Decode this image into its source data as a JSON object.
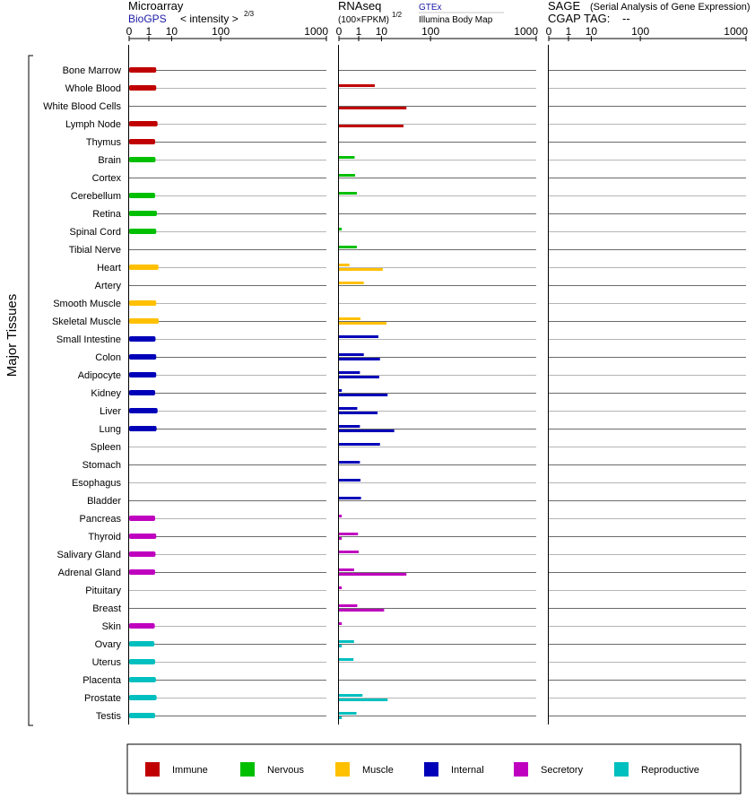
{
  "headers": {
    "microarray": "Microarray",
    "biogps": "BioGPS",
    "intensity": "< intensity >",
    "intensity_exp": "2/3",
    "rnaseq": "RNAseq",
    "fpkm": "(100×FPKM)",
    "fpkm_exp": "1/2",
    "gtex": "GTEx",
    "illumina": "Illumina Body Map",
    "sage": "SAGE",
    "sage_desc": "(Serial Analysis of Gene Expression)",
    "cgap": "CGAP TAG:",
    "cgap_value": "--"
  },
  "side_label": "Major Tissues",
  "ticks": [
    "0",
    "1",
    "10",
    "100",
    "1000"
  ],
  "colors": {
    "immune": "#c00000",
    "nervous": "#00bf00",
    "muscle": "#ffc000",
    "internal": "#0000b8",
    "secretory": "#bf00bf",
    "reproductive": "#00bfbf"
  },
  "legend": [
    {
      "key": "immune",
      "label": "Immune"
    },
    {
      "key": "nervous",
      "label": "Nervous"
    },
    {
      "key": "muscle",
      "label": "Muscle"
    },
    {
      "key": "internal",
      "label": "Internal"
    },
    {
      "key": "secretory",
      "label": "Secretory"
    },
    {
      "key": "reproductive",
      "label": "Reproductive"
    }
  ],
  "chart_data": {
    "type": "bar",
    "title": "",
    "x_scale": "power 1/3 (ticks 0, 1, 10, 100, 1000)",
    "xlim": [
      0,
      1000
    ],
    "grid": true,
    "legend_position": "bottom",
    "tissues": [
      {
        "name": "Bone Marrow",
        "group": "immune",
        "microarray": 2.6,
        "gtex": null,
        "illumina": null
      },
      {
        "name": "Whole Blood",
        "group": "immune",
        "microarray": 2.6,
        "gtex": 6.0,
        "illumina": null
      },
      {
        "name": "White Blood Cells",
        "group": "immune",
        "microarray": null,
        "gtex": null,
        "illumina": 40
      },
      {
        "name": "Lymph Node",
        "group": "immune",
        "microarray": 3.0,
        "gtex": null,
        "illumina": 35
      },
      {
        "name": "Thymus",
        "group": "immune",
        "microarray": 2.3,
        "gtex": null,
        "illumina": null
      },
      {
        "name": "Brain",
        "group": "nervous",
        "microarray": 2.4,
        "gtex": 0.5,
        "illumina": null
      },
      {
        "name": "Cortex",
        "group": "nervous",
        "microarray": null,
        "gtex": 0.55,
        "illumina": null
      },
      {
        "name": "Cerebellum",
        "group": "nervous",
        "microarray": 2.3,
        "gtex": 0.75,
        "illumina": null
      },
      {
        "name": "Retina",
        "group": "nervous",
        "microarray": 2.8,
        "gtex": null,
        "illumina": null
      },
      {
        "name": "Spinal Cord",
        "group": "nervous",
        "microarray": 2.6,
        "gtex": 0.003,
        "illumina": null
      },
      {
        "name": "Tibial Nerve",
        "group": "nervous",
        "microarray": null,
        "gtex": 0.75,
        "illumina": null
      },
      {
        "name": "Heart",
        "group": "muscle",
        "microarray": 3.3,
        "gtex": 0.15,
        "illumina": 11
      },
      {
        "name": "Artery",
        "group": "muscle",
        "microarray": null,
        "gtex": 2.0,
        "illumina": null
      },
      {
        "name": "Smooth Muscle",
        "group": "muscle",
        "microarray": 2.6,
        "gtex": null,
        "illumina": null
      },
      {
        "name": "Skeletal Muscle",
        "group": "muscle",
        "microarray": 3.4,
        "gtex": 1.3,
        "illumina": 14
      },
      {
        "name": "Small Intestine",
        "group": "internal",
        "microarray": 2.4,
        "gtex": 8.0,
        "illumina": null
      },
      {
        "name": "Colon",
        "group": "internal",
        "microarray": 2.6,
        "gtex": 2.0,
        "illumina": 9.0
      },
      {
        "name": "Adipocyte",
        "group": "internal",
        "microarray": 2.6,
        "gtex": 1.2,
        "illumina": 8.5
      },
      {
        "name": "Kidney",
        "group": "internal",
        "microarray": 2.3,
        "gtex": 0.003,
        "illumina": 15
      },
      {
        "name": "Liver",
        "group": "internal",
        "microarray": 3.0,
        "gtex": 0.8,
        "illumina": 7.5
      },
      {
        "name": "Lung",
        "group": "internal",
        "microarray": 2.7,
        "gtex": 1.2,
        "illumina": 22
      },
      {
        "name": "Spleen",
        "group": "internal",
        "microarray": null,
        "gtex": 9.0,
        "illumina": null
      },
      {
        "name": "Stomach",
        "group": "internal",
        "microarray": null,
        "gtex": 1.2,
        "illumina": null
      },
      {
        "name": "Esophagus",
        "group": "internal",
        "microarray": null,
        "gtex": 1.3,
        "illumina": null
      },
      {
        "name": "Bladder",
        "group": "internal",
        "microarray": null,
        "gtex": 1.4,
        "illumina": null
      },
      {
        "name": "Pancreas",
        "group": "secretory",
        "microarray": 2.3,
        "gtex": 0.003,
        "illumina": null
      },
      {
        "name": "Thyroid",
        "group": "secretory",
        "microarray": 2.6,
        "gtex": 0.9,
        "illumina": 0.003
      },
      {
        "name": "Salivary Gland",
        "group": "secretory",
        "microarray": 2.4,
        "gtex": 1.0,
        "illumina": null
      },
      {
        "name": "Adrenal Gland",
        "group": "secretory",
        "microarray": 2.3,
        "gtex": 0.45,
        "illumina": 40
      },
      {
        "name": "Pituitary",
        "group": "secretory",
        "microarray": null,
        "gtex": 0.003,
        "illumina": null
      },
      {
        "name": "Breast",
        "group": "secretory",
        "microarray": null,
        "gtex": 0.8,
        "illumina": 12
      },
      {
        "name": "Skin",
        "group": "secretory",
        "microarray": 2.2,
        "gtex": 0.003,
        "illumina": null
      },
      {
        "name": "Ovary",
        "group": "reproductive",
        "microarray": 2.1,
        "gtex": 0.45,
        "illumina": 0.003
      },
      {
        "name": "Uterus",
        "group": "reproductive",
        "microarray": 2.3,
        "gtex": 0.4,
        "illumina": null
      },
      {
        "name": "Placenta",
        "group": "reproductive",
        "microarray": 2.5,
        "gtex": null,
        "illumina": null
      },
      {
        "name": "Prostate",
        "group": "reproductive",
        "microarray": 2.7,
        "gtex": 1.7,
        "illumina": 15
      },
      {
        "name": "Testis",
        "group": "reproductive",
        "microarray": 2.3,
        "gtex": 0.7,
        "illumina": 0.003
      }
    ]
  }
}
